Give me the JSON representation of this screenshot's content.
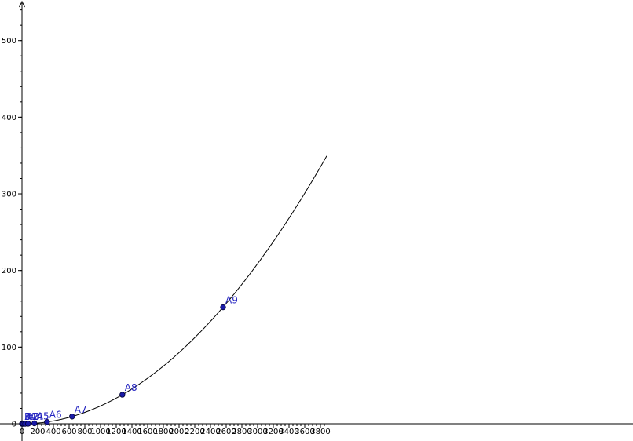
{
  "chart_data": {
    "type": "scatter",
    "title": "",
    "xlabel": "",
    "ylabel": "",
    "xlim": [
      -140,
      3885
    ],
    "ylim": [
      -2,
      550
    ],
    "grid": false,
    "legend": "none",
    "x_ticks": [
      0,
      200,
      400,
      600,
      800,
      1000,
      1200,
      1400,
      1600,
      1800,
      2000,
      2200,
      2400,
      2600,
      2800,
      3000,
      3200,
      3400,
      3600,
      3800
    ],
    "y_ticks": [
      0,
      100,
      200,
      300,
      400,
      500
    ],
    "x_minor_step": 50,
    "y_minor_step": 20,
    "curve": {
      "formula": "y = 0.00002321 * x^2",
      "coefficient": 2.321e-05,
      "exponent": 2,
      "x_range": [
        0,
        3885
      ],
      "color": "#000000"
    },
    "points": [
      {
        "label": "B",
        "x": 0,
        "y": 0
      },
      {
        "label": "A1",
        "x": 5,
        "y": 0
      },
      {
        "label": "A2",
        "x": 20,
        "y": 0
      },
      {
        "label": "A3",
        "x": 40,
        "y": 0
      },
      {
        "label": "A4",
        "x": 78,
        "y": 0.14
      },
      {
        "label": "A5",
        "x": 158,
        "y": 0.58
      },
      {
        "label": "A6",
        "x": 318,
        "y": 2.35
      },
      {
        "label": "A7",
        "x": 638,
        "y": 9.45
      },
      {
        "label": "A8",
        "x": 1278,
        "y": 37.9
      },
      {
        "label": "A9",
        "x": 2560,
        "y": 152
      }
    ],
    "point_color": "#1a1aa8",
    "label_color": "#2323c0"
  }
}
